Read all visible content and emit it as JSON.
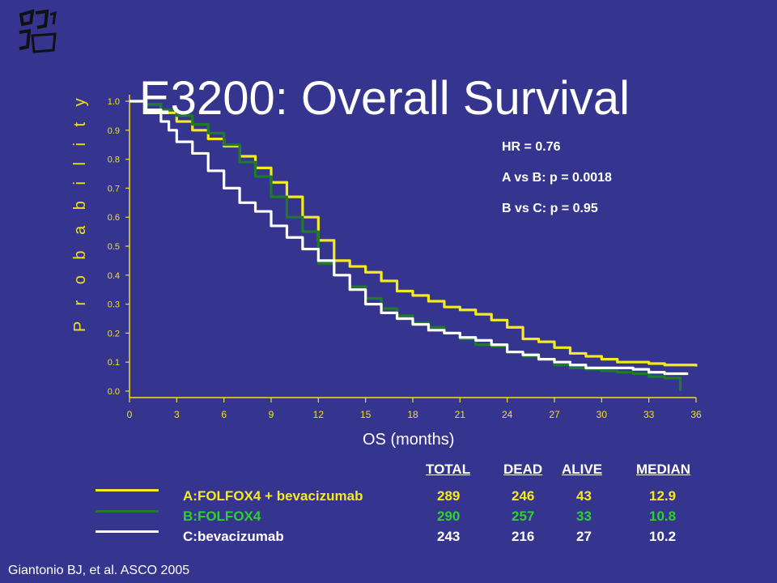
{
  "title": "E3200: Overall Survival",
  "citation": "Giantonio BJ, et al. ASCO 2005",
  "stats": {
    "hr": "HR = 0.76",
    "a_vs_b": "A vs B: p = 0.0018",
    "b_vs_c": "B vs C: p = 0.95"
  },
  "colors": {
    "background": "#35358f",
    "series_a": "#f5ea1e",
    "series_b": "#1f7a2a",
    "series_c": "#ffffff",
    "axis": "#f2e21a",
    "row_b_text": "#2fd02f"
  },
  "table": {
    "headers": [
      "TOTAL",
      "DEAD",
      "ALIVE",
      "MEDIAN"
    ],
    "rows": [
      {
        "label": "A:FOLFOX4 + bevacizumab",
        "total": "289",
        "dead": "246",
        "alive": "43",
        "median": "12.9"
      },
      {
        "label": "B:FOLFOX4",
        "total": "290",
        "dead": "257",
        "alive": "33",
        "median": "10.8"
      },
      {
        "label": "C:bevacizumab",
        "total": "243",
        "dead": "216",
        "alive": "27",
        "median": "10.2"
      }
    ]
  },
  "chart_data": {
    "type": "line",
    "title": "E3200: Overall Survival",
    "xlabel": "OS (months)",
    "ylabel": "P r o b a b i l i t y",
    "xlim": [
      0,
      36
    ],
    "ylim": [
      0,
      1
    ],
    "x_ticks": [
      "0",
      "3",
      "6",
      "9",
      "12",
      "15",
      "18",
      "21",
      "24",
      "27",
      "30",
      "33",
      "36"
    ],
    "y_ticks": [
      "0.0",
      "0.1",
      "0.2",
      "0.3",
      "0.4",
      "0.5",
      "0.6",
      "0.7",
      "0.8",
      "0.9",
      "1.0"
    ],
    "grid": false,
    "series": [
      {
        "name": "A:FOLFOX4 + bevacizumab",
        "color": "#f5ea1e",
        "points": [
          [
            0,
            1.0
          ],
          [
            1,
            0.99
          ],
          [
            2,
            0.96
          ],
          [
            3,
            0.93
          ],
          [
            4,
            0.9
          ],
          [
            5,
            0.87
          ],
          [
            6,
            0.845
          ],
          [
            7,
            0.81
          ],
          [
            8,
            0.77
          ],
          [
            9,
            0.72
          ],
          [
            10,
            0.67
          ],
          [
            11,
            0.6
          ],
          [
            12,
            0.52
          ],
          [
            13,
            0.45
          ],
          [
            14,
            0.43
          ],
          [
            15,
            0.41
          ],
          [
            16,
            0.38
          ],
          [
            17,
            0.345
          ],
          [
            18,
            0.33
          ],
          [
            19,
            0.31
          ],
          [
            20,
            0.29
          ],
          [
            21,
            0.28
          ],
          [
            22,
            0.265
          ],
          [
            23,
            0.245
          ],
          [
            24,
            0.22
          ],
          [
            25,
            0.18
          ],
          [
            26,
            0.17
          ],
          [
            27,
            0.15
          ],
          [
            28,
            0.13
          ],
          [
            29,
            0.12
          ],
          [
            30,
            0.11
          ],
          [
            31,
            0.1
          ],
          [
            32,
            0.1
          ],
          [
            33,
            0.095
          ],
          [
            34,
            0.09
          ],
          [
            35,
            0.09
          ],
          [
            36,
            0.085
          ]
        ]
      },
      {
        "name": "B:FOLFOX4",
        "color": "#1f7a2a",
        "points": [
          [
            0,
            1.0
          ],
          [
            1,
            0.99
          ],
          [
            2,
            0.97
          ],
          [
            3,
            0.95
          ],
          [
            4,
            0.92
          ],
          [
            5,
            0.89
          ],
          [
            6,
            0.85
          ],
          [
            7,
            0.79
          ],
          [
            8,
            0.74
          ],
          [
            9,
            0.67
          ],
          [
            10,
            0.6
          ],
          [
            11,
            0.55
          ],
          [
            12,
            0.44
          ],
          [
            13,
            0.4
          ],
          [
            14,
            0.36
          ],
          [
            15,
            0.32
          ],
          [
            16,
            0.285
          ],
          [
            17,
            0.26
          ],
          [
            18,
            0.235
          ],
          [
            19,
            0.22
          ],
          [
            20,
            0.2
          ],
          [
            21,
            0.18
          ],
          [
            22,
            0.16
          ],
          [
            23,
            0.155
          ],
          [
            24,
            0.135
          ],
          [
            25,
            0.12
          ],
          [
            26,
            0.11
          ],
          [
            27,
            0.09
          ],
          [
            28,
            0.08
          ],
          [
            29,
            0.075
          ],
          [
            30,
            0.07
          ],
          [
            31,
            0.065
          ],
          [
            32,
            0.06
          ],
          [
            33,
            0.05
          ],
          [
            34,
            0.045
          ],
          [
            35,
            0.045
          ],
          [
            35,
            0.0
          ]
        ]
      },
      {
        "name": "C:bevacizumab",
        "color": "#ffffff",
        "points": [
          [
            0,
            1.0
          ],
          [
            1,
            0.97
          ],
          [
            2,
            0.93
          ],
          [
            2.5,
            0.9
          ],
          [
            3,
            0.86
          ],
          [
            4,
            0.82
          ],
          [
            5,
            0.76
          ],
          [
            6,
            0.7
          ],
          [
            7,
            0.65
          ],
          [
            8,
            0.62
          ],
          [
            9,
            0.57
          ],
          [
            10,
            0.53
          ],
          [
            11,
            0.49
          ],
          [
            12,
            0.45
          ],
          [
            13,
            0.4
          ],
          [
            14,
            0.35
          ],
          [
            15,
            0.3
          ],
          [
            16,
            0.27
          ],
          [
            17,
            0.25
          ],
          [
            18,
            0.23
          ],
          [
            19,
            0.21
          ],
          [
            20,
            0.2
          ],
          [
            21,
            0.185
          ],
          [
            22,
            0.175
          ],
          [
            23,
            0.16
          ],
          [
            24,
            0.135
          ],
          [
            25,
            0.125
          ],
          [
            26,
            0.11
          ],
          [
            27,
            0.1
          ],
          [
            28,
            0.09
          ],
          [
            29,
            0.08
          ],
          [
            30,
            0.08
          ],
          [
            31,
            0.08
          ],
          [
            32,
            0.075
          ],
          [
            33,
            0.065
          ],
          [
            34,
            0.06
          ],
          [
            35,
            0.06
          ],
          [
            35.5,
            0.06
          ]
        ]
      }
    ],
    "legend_placement": "below-chart"
  }
}
